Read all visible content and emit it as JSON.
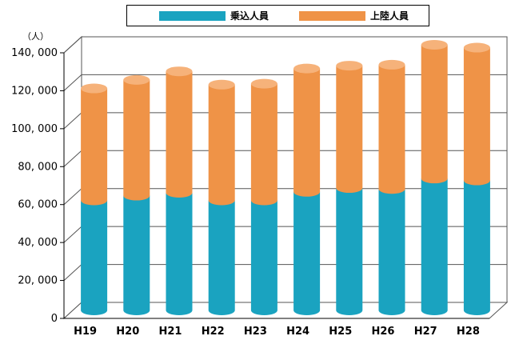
{
  "legend": {
    "series_1": "乗込人員",
    "series_2": "上陸人員"
  },
  "unit_label": "（人）",
  "colors": {
    "series_1": "#1aa3c0",
    "series_1_top": "#5cc6dc",
    "series_2": "#ef9347",
    "series_2_top": "#f6b27a",
    "wall": "#ffffff",
    "grid": "#555555"
  },
  "chart_data": {
    "type": "bar",
    "stacked": true,
    "categories": [
      "H19",
      "H20",
      "H21",
      "H22",
      "H23",
      "H24",
      "H25",
      "H26",
      "H27",
      "H28"
    ],
    "series": [
      {
        "name": "乗込人員",
        "values": [
          58000,
          60500,
          62000,
          58000,
          58000,
          62500,
          64500,
          64000,
          69500,
          68500
        ]
      },
      {
        "name": "上陸人員",
        "values": [
          59000,
          61000,
          64000,
          61000,
          61500,
          65000,
          64500,
          65500,
          70500,
          70000
        ]
      }
    ],
    "ylim": [
      0,
      140000
    ],
    "yticks": [
      "0",
      "20, 000",
      "40, 000",
      "60, 000",
      "80, 000",
      "100, 000",
      "120, 000",
      "140, 000"
    ],
    "ytick_values": [
      0,
      20000,
      40000,
      60000,
      80000,
      100000,
      120000,
      140000
    ],
    "grid": true
  }
}
